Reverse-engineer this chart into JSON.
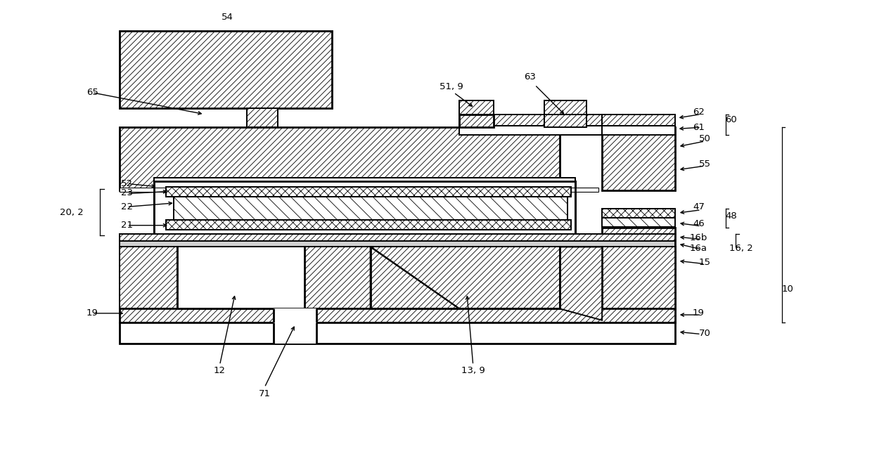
{
  "bg_color": "#ffffff",
  "fig_width": 12.4,
  "fig_height": 6.59,
  "dpi": 100,
  "hatch_lw": 0.6,
  "lw": 1.4,
  "lw2": 2.0
}
